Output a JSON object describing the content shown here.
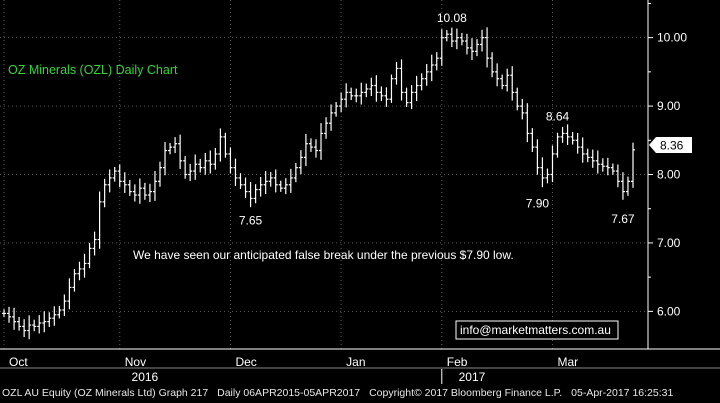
{
  "chart_data": {
    "type": "ohlc",
    "title": "OZ Minerals (OZL)  Daily Chart",
    "annotation": "We have seen our anticipated false break under the previous $7.90 low.",
    "contact": "info@marketmatters.com.au",
    "last_price_label": "8.36",
    "ylim": [
      5.45,
      10.55
    ],
    "yticks": [
      {
        "value": 6.0,
        "label": "6.00"
      },
      {
        "value": 7.0,
        "label": "7.00"
      },
      {
        "value": 8.0,
        "label": "8.00"
      },
      {
        "value": 9.0,
        "label": "9.00"
      },
      {
        "value": 10.0,
        "label": "10.00"
      }
    ],
    "month_labels": [
      {
        "label": "Oct",
        "bar": 1
      },
      {
        "label": "Nov",
        "bar": 24
      },
      {
        "label": "Dec",
        "bar": 46
      },
      {
        "label": "Jan",
        "bar": 68
      },
      {
        "label": "Feb",
        "bar": 88
      },
      {
        "label": "Mar",
        "bar": 110
      }
    ],
    "year_labels": [
      {
        "label": "2016",
        "bar": 28
      },
      {
        "label": "2017",
        "bar": 93
      }
    ],
    "price_labels": [
      {
        "text": "10.08",
        "bar": 89,
        "value": 10.08,
        "pos": "above"
      },
      {
        "text": "8.64",
        "bar": 110,
        "value": 8.64,
        "pos": "above"
      },
      {
        "text": "7.65",
        "bar": 49,
        "value": 7.65,
        "pos": "below"
      },
      {
        "text": "7.90",
        "bar": 106,
        "value": 7.9,
        "pos": "below"
      },
      {
        "text": "7.67",
        "bar": 123,
        "value": 7.67,
        "pos": "below"
      }
    ],
    "closes": [
      5.97,
      5.92,
      5.85,
      5.78,
      5.72,
      5.8,
      5.78,
      5.83,
      5.85,
      5.9,
      5.95,
      6.02,
      6.15,
      6.35,
      6.55,
      6.62,
      6.7,
      6.92,
      7.05,
      7.6,
      7.85,
      7.95,
      8.05,
      7.9,
      7.85,
      7.75,
      7.7,
      7.8,
      7.7,
      7.75,
      7.9,
      8.1,
      8.35,
      8.4,
      8.45,
      8.2,
      8.0,
      8.05,
      8.15,
      8.1,
      8.2,
      8.15,
      8.3,
      8.55,
      8.3,
      8.1,
      7.95,
      7.85,
      7.75,
      7.65,
      7.78,
      7.85,
      7.9,
      7.95,
      7.85,
      7.8,
      7.85,
      7.95,
      8.1,
      8.25,
      8.45,
      8.4,
      8.35,
      8.6,
      8.75,
      8.9,
      9.0,
      9.1,
      9.2,
      9.15,
      9.15,
      9.2,
      9.25,
      9.3,
      9.2,
      9.15,
      9.1,
      9.4,
      9.55,
      9.2,
      9.05,
      9.2,
      9.3,
      9.4,
      9.5,
      9.6,
      9.7,
      10.0,
      10.05,
      9.95,
      10.0,
      9.95,
      9.85,
      9.8,
      9.9,
      10.0,
      9.7,
      9.5,
      9.4,
      9.3,
      9.45,
      9.2,
      9.0,
      8.9,
      8.6,
      8.4,
      8.1,
      7.95,
      8.0,
      8.3,
      8.55,
      8.6,
      8.55,
      8.5,
      8.4,
      8.3,
      8.25,
      8.2,
      8.15,
      8.12,
      8.1,
      8.05,
      7.9,
      7.75,
      7.9,
      8.36
    ],
    "grid": true,
    "price_axis": "right"
  },
  "footer": {
    "ticker": "OZL AU Equity (OZ Minerals Ltd) Graph 217",
    "range": "Daily 06APR2015-05APR2017",
    "copyright": "Copyright© 2017 Bloomberg Finance L.P.",
    "timestamp": "05-Apr-2017 16:25:31"
  },
  "colors": {
    "background": "#000000",
    "bars": "#ffffff",
    "grid": "#5a5a5a",
    "title": "#3ad13a",
    "contact_border": "#ffffff",
    "contact_text": "#ffffff"
  }
}
